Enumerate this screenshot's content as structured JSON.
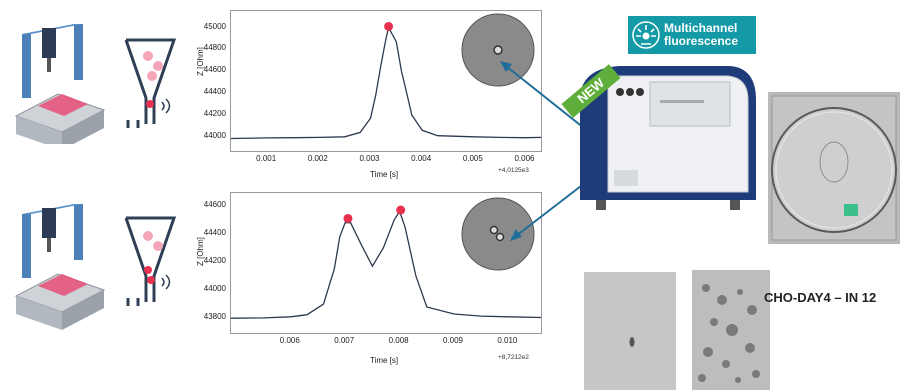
{
  "badge": {
    "line1": "Multichannel",
    "line2": "fluorescence",
    "icon": "fluorescence-burst-icon"
  },
  "new_ribbon": "NEW",
  "side_label": "CHO-DAY4 – IN 12",
  "colors": {
    "trace": "#2c3a4e",
    "peak": "#e8314f",
    "accent": "#149aa6",
    "ribbon": "#5fae3c",
    "arrow": "#1f6e99"
  },
  "chart_data": [
    {
      "type": "line",
      "title": "",
      "xlabel": "Time [s]",
      "ylabel": "Z [Ohm]",
      "x_offset_label": "+4,0125e3",
      "xlim": [
        0.0003,
        0.0063
      ],
      "ylim": [
        43980,
        45060
      ],
      "x_ticks": [
        "0.001",
        "0.002",
        "0.003",
        "0.004",
        "0.005",
        "0.006"
      ],
      "y_ticks": [
        "44000",
        "44200",
        "44400",
        "44600",
        "44800",
        "45000"
      ],
      "x": [
        0.0003,
        0.001,
        0.0015,
        0.002,
        0.0025,
        0.0028,
        0.003,
        0.0031,
        0.0032,
        0.0033,
        0.00335,
        0.0035,
        0.0036,
        0.0037,
        0.0038,
        0.004,
        0.0043,
        0.005,
        0.0055,
        0.006,
        0.0063
      ],
      "y": [
        43985,
        43990,
        43992,
        43995,
        44000,
        44040,
        44170,
        44380,
        44650,
        44900,
        45000,
        44870,
        44600,
        44400,
        44200,
        44060,
        44010,
        44000,
        43995,
        43992,
        43995
      ],
      "peaks": [
        {
          "x": 0.00335,
          "y": 45010
        }
      ]
    },
    {
      "type": "line",
      "title": "",
      "xlabel": "Time [s]",
      "ylabel": "Z [Ohm]",
      "x_offset_label": "+8,7212e2",
      "xlim": [
        0.0049,
        0.0106
      ],
      "ylim": [
        43780,
        44620
      ],
      "x_ticks": [
        "0.006",
        "0.007",
        "0.008",
        "0.009",
        "0.010"
      ],
      "y_ticks": [
        "43800",
        "44000",
        "44200",
        "44400",
        "44600"
      ],
      "x": [
        0.0049,
        0.0055,
        0.006,
        0.0063,
        0.0066,
        0.0068,
        0.0069,
        0.007,
        0.0071,
        0.0073,
        0.0075,
        0.0077,
        0.0079,
        0.008,
        0.0081,
        0.0083,
        0.0085,
        0.009,
        0.0095,
        0.01,
        0.0106
      ],
      "y": [
        43800,
        43802,
        43810,
        43825,
        43900,
        44150,
        44380,
        44480,
        44480,
        44320,
        44170,
        44300,
        44500,
        44560,
        44450,
        44100,
        43880,
        43830,
        43815,
        43810,
        43805
      ],
      "peaks": [
        {
          "x": 0.00705,
          "y": 44510
        },
        {
          "x": 0.00802,
          "y": 44570
        }
      ]
    }
  ]
}
